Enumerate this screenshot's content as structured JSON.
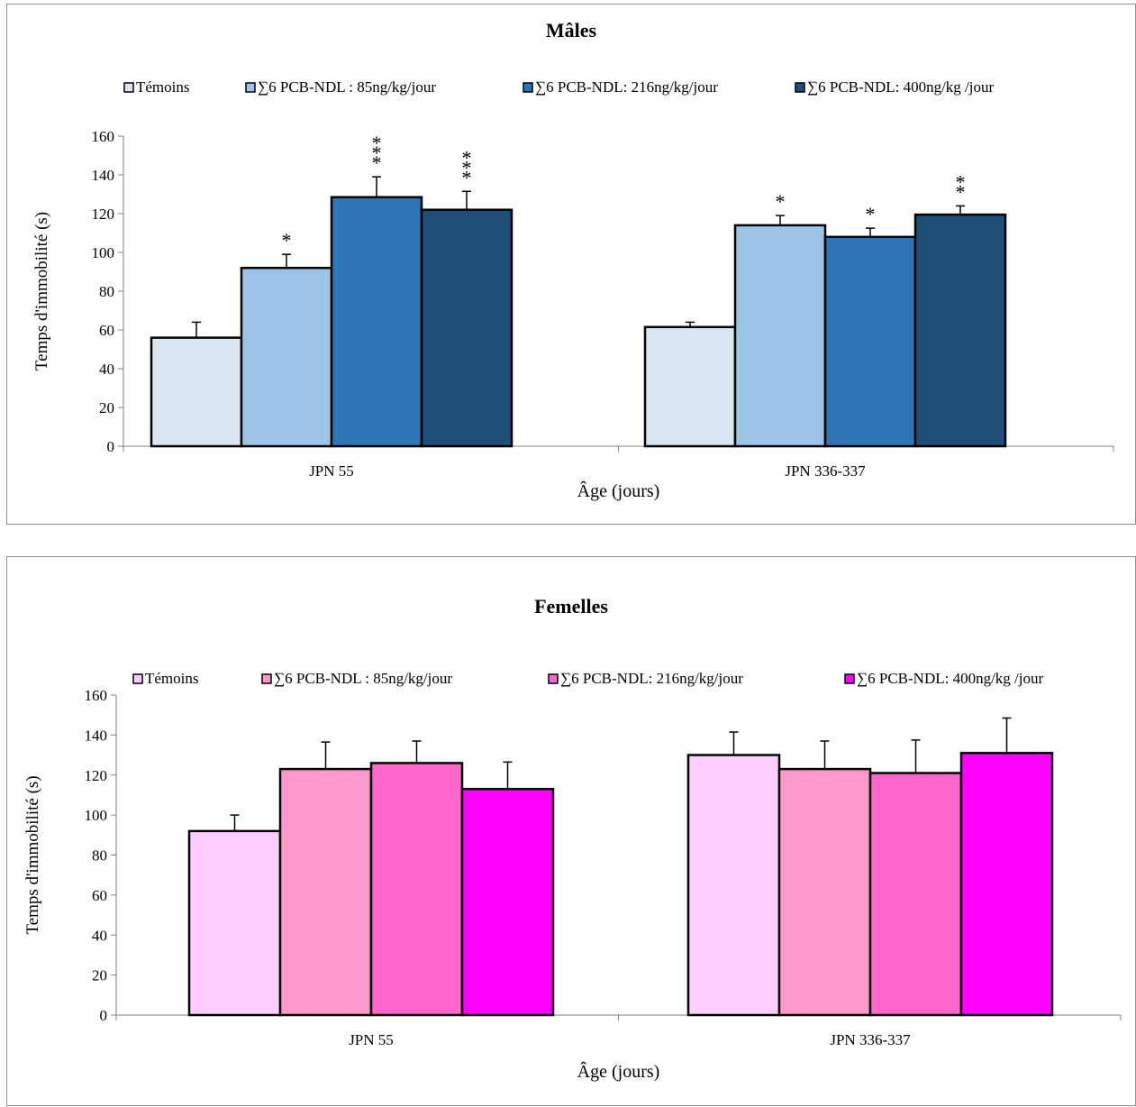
{
  "chart_data": [
    {
      "type": "bar",
      "title": "Mâles",
      "xlabel": "Âge (jours)",
      "ylabel": "Temps d'immobilité (s)",
      "ylim": [
        0,
        160
      ],
      "yticks": [
        0,
        20,
        40,
        60,
        80,
        100,
        120,
        140,
        160
      ],
      "categories": [
        "JPN 55",
        "JPN 336-337"
      ],
      "legend_position": "top",
      "series": [
        {
          "name": "Témoins",
          "color": "#dce6f2",
          "values": [
            56,
            61.5
          ],
          "errors": [
            8,
            2.5
          ],
          "significance": [
            "",
            ""
          ]
        },
        {
          "name": "∑6 PCB-NDL : 85ng/kg/jour",
          "color": "#9dc3e6",
          "values": [
            92,
            114
          ],
          "errors": [
            7,
            5
          ],
          "significance": [
            "*",
            "*"
          ]
        },
        {
          "name": "∑6 PCB-NDL: 216ng/kg/jour",
          "color": "#2e75b6",
          "values": [
            128.5,
            108
          ],
          "errors": [
            10.5,
            4.5
          ],
          "significance": [
            "***",
            "*"
          ]
        },
        {
          "name": "∑6 PCB-NDL: 400ng/kg /jour",
          "color": "#1f4e79",
          "values": [
            122,
            119.5
          ],
          "errors": [
            9.5,
            4.5
          ],
          "significance": [
            "***",
            "**"
          ]
        }
      ]
    },
    {
      "type": "bar",
      "title": "Femelles",
      "xlabel": "Âge (jours)",
      "ylabel": "Temps d'immobilité (s)",
      "ylim": [
        0,
        160
      ],
      "yticks": [
        0,
        20,
        40,
        60,
        80,
        100,
        120,
        140,
        160
      ],
      "categories": [
        "JPN 55",
        "JPN 336-337"
      ],
      "legend_position": "top",
      "series": [
        {
          "name": "Témoins",
          "color": "#ffccff",
          "values": [
            92,
            130
          ],
          "errors": [
            8,
            11.5
          ],
          "significance": [
            "",
            ""
          ]
        },
        {
          "name": "∑6 PCB-NDL : 85ng/kg/jour",
          "color": "#ff99cc",
          "values": [
            123,
            123
          ],
          "errors": [
            13.5,
            14
          ],
          "significance": [
            "",
            ""
          ]
        },
        {
          "name": "∑6 PCB-NDL: 216ng/kg/jour",
          "color": "#ff66cc",
          "values": [
            126,
            121
          ],
          "errors": [
            11,
            16.5
          ],
          "significance": [
            "",
            ""
          ]
        },
        {
          "name": "∑6 PCB-NDL: 400ng/kg /jour",
          "color": "#ff00ff",
          "values": [
            113,
            131
          ],
          "errors": [
            13.5,
            17.5
          ],
          "significance": [
            "",
            ""
          ]
        }
      ]
    }
  ]
}
